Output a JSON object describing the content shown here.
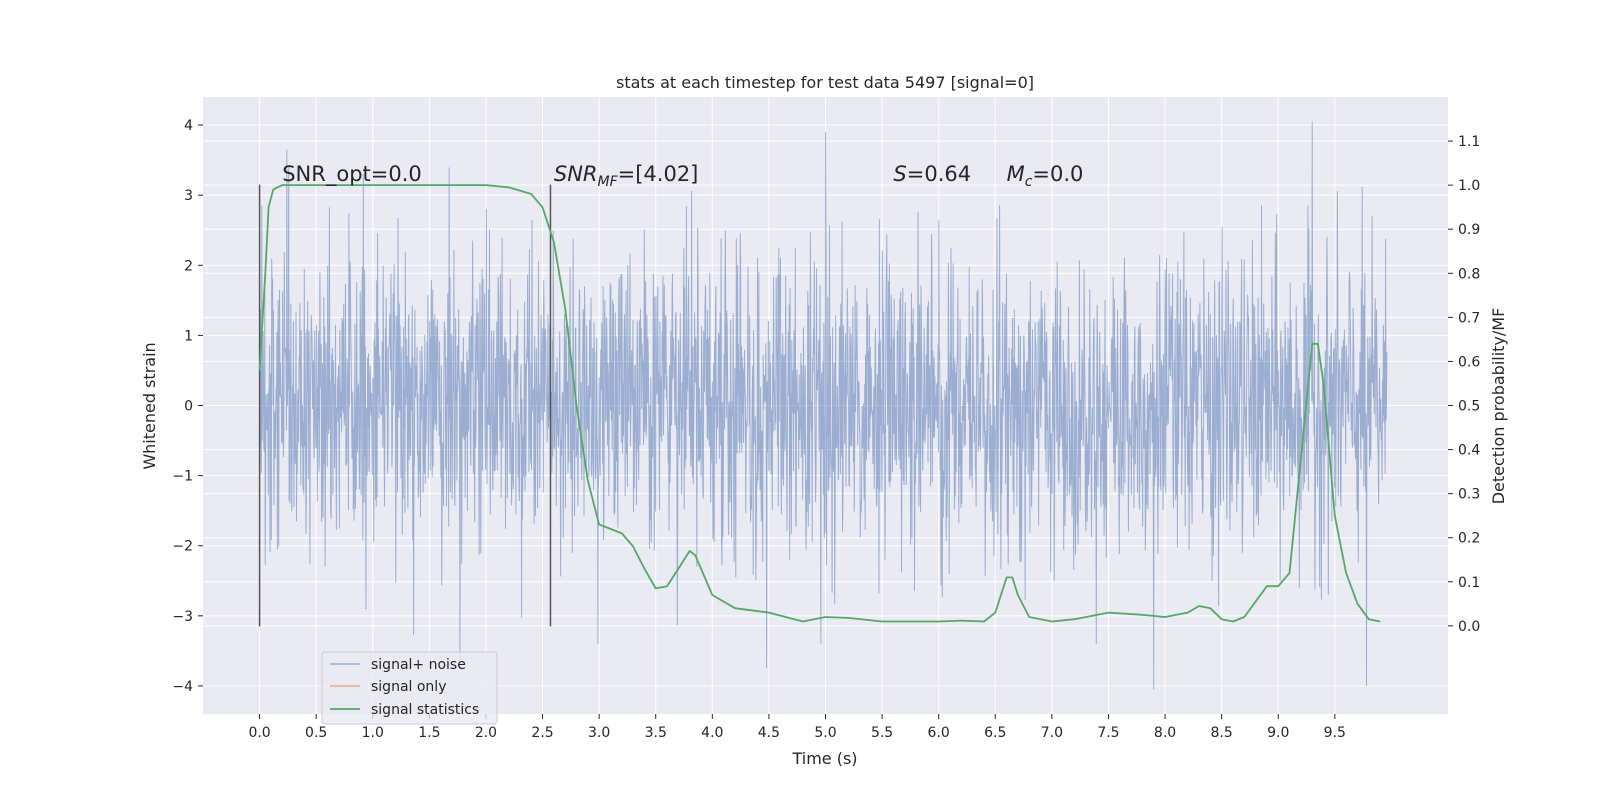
{
  "chart_data": {
    "type": "line",
    "title": "stats at each timestep for test data 5497 [signal=0]",
    "xlabel": "Time (s)",
    "ylabel": "Whitened strain",
    "ylabel_right": "Detection probability/MF",
    "xlim": [
      -0.5,
      10.5
    ],
    "ylim": [
      -4.4,
      4.4
    ],
    "ylim_right": [
      -0.2,
      1.2
    ],
    "x_ticks": [
      0.0,
      0.5,
      1.0,
      1.5,
      2.0,
      2.5,
      3.0,
      3.5,
      4.0,
      4.5,
      5.0,
      5.5,
      6.0,
      6.5,
      7.0,
      7.5,
      8.0,
      8.5,
      9.0,
      9.5
    ],
    "x_tick_labels": [
      "0.0",
      "0.5",
      "1.0",
      "1.5",
      "2.0",
      "2.5",
      "3.0",
      "3.5",
      "4.0",
      "4.5",
      "5.0",
      "5.5",
      "6.0",
      "6.5",
      "7.0",
      "7.5",
      "8.0",
      "8.5",
      "9.0",
      "9.5"
    ],
    "y_ticks": [
      -4,
      -3,
      -2,
      -1,
      0,
      1,
      2,
      3,
      4
    ],
    "y_tick_labels": [
      "−4",
      "−3",
      "−2",
      "−1",
      "0",
      "1",
      "2",
      "3",
      "4"
    ],
    "y_right_ticks": [
      0.0,
      0.1,
      0.2,
      0.3,
      0.4,
      0.5,
      0.6,
      0.7,
      0.8,
      0.9,
      1.0,
      1.1
    ],
    "y_right_tick_labels": [
      "0.0",
      "0.1",
      "0.2",
      "0.3",
      "0.4",
      "0.5",
      "0.6",
      "0.7",
      "0.8",
      "0.9",
      "1.0",
      "1.1"
    ],
    "grid": true,
    "legend_position": "lower-left",
    "colors": {
      "background": "#eaeaf2",
      "grid": "#ffffff",
      "noise": "#4c72b0",
      "signal": "#dd8452",
      "stats": "#55a868",
      "marker": "#555555"
    },
    "series": [
      {
        "name": "signal+ noise",
        "axis": "left",
        "description_range": [
          -4.0,
          4.0
        ],
        "t_start": 0.0,
        "t_end": 9.96,
        "dense_band": [
          -1.3,
          1.3
        ],
        "peaks": [
          [
            0.24,
            3.65
          ],
          [
            1.77,
            -3.75
          ],
          [
            4.48,
            -3.75
          ],
          [
            5.0,
            3.9
          ],
          [
            7.9,
            -4.05
          ],
          [
            9.3,
            4.05
          ],
          [
            9.78,
            -4.0
          ]
        ]
      },
      {
        "name": "signal only",
        "axis": "left",
        "values": []
      },
      {
        "name": "signal statistics",
        "axis": "right",
        "x": [
          0.0,
          0.05,
          0.08,
          0.12,
          0.2,
          0.5,
          1.0,
          1.5,
          2.0,
          2.2,
          2.4,
          2.5,
          2.6,
          2.7,
          2.8,
          2.9,
          3.0,
          3.1,
          3.2,
          3.3,
          3.4,
          3.5,
          3.6,
          3.7,
          3.8,
          3.85,
          3.9,
          4.0,
          4.2,
          4.5,
          4.8,
          5.0,
          5.2,
          5.5,
          6.0,
          6.2,
          6.4,
          6.5,
          6.6,
          6.65,
          6.7,
          6.8,
          7.0,
          7.2,
          7.5,
          7.8,
          8.0,
          8.2,
          8.3,
          8.4,
          8.5,
          8.6,
          8.7,
          8.9,
          9.0,
          9.1,
          9.2,
          9.3,
          9.35,
          9.4,
          9.5,
          9.6,
          9.7,
          9.8,
          9.9
        ],
        "y": [
          0.58,
          0.8,
          0.95,
          0.99,
          1.0,
          1.0,
          1.0,
          1.0,
          1.0,
          0.995,
          0.98,
          0.95,
          0.87,
          0.72,
          0.5,
          0.33,
          0.23,
          0.22,
          0.21,
          0.18,
          0.13,
          0.085,
          0.09,
          0.13,
          0.17,
          0.16,
          0.13,
          0.07,
          0.04,
          0.03,
          0.01,
          0.02,
          0.018,
          0.01,
          0.01,
          0.012,
          0.01,
          0.03,
          0.11,
          0.11,
          0.07,
          0.02,
          0.01,
          0.015,
          0.03,
          0.025,
          0.02,
          0.03,
          0.045,
          0.04,
          0.015,
          0.01,
          0.02,
          0.09,
          0.09,
          0.12,
          0.38,
          0.64,
          0.64,
          0.55,
          0.25,
          0.12,
          0.05,
          0.015,
          0.01
        ]
      }
    ],
    "markers": [
      0.0,
      2.57
    ],
    "annotations": [
      {
        "id": "snr-opt",
        "text": "SNR_opt=0.0",
        "x": 0.2,
        "y": 3.2
      },
      {
        "id": "snr-mf",
        "text_main": "SNR",
        "text_sub": "MF",
        "text_rest": "=[4.02]",
        "x": 2.6,
        "y": 3.2
      },
      {
        "id": "s-value",
        "text_main": "S",
        "text_rest": "=0.64",
        "x": 5.6,
        "y": 3.2
      },
      {
        "id": "mc-value",
        "text_main": "M",
        "text_sub": "c",
        "text_rest": "=0.0",
        "x": 6.6,
        "y": 3.2
      }
    ]
  }
}
